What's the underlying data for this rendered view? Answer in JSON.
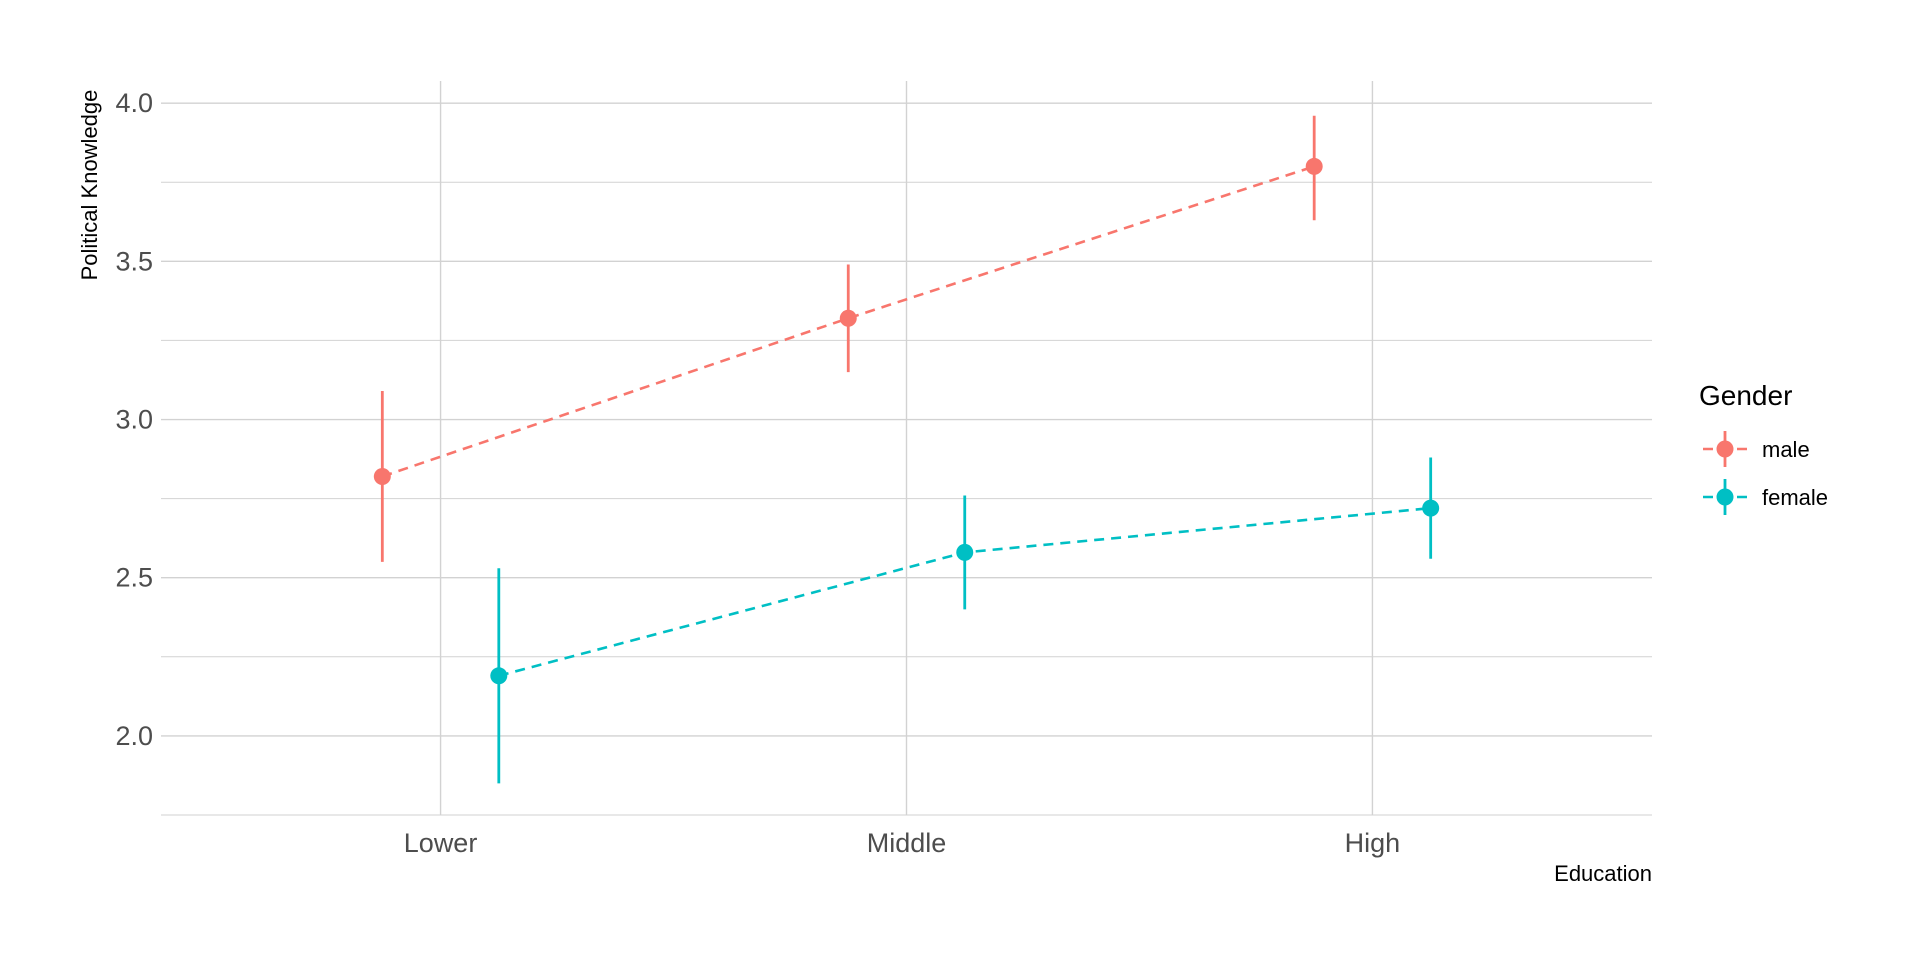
{
  "chart_data": {
    "type": "line",
    "title": "",
    "xlabel": "Education",
    "ylabel": "Political Knowledge",
    "categories": [
      "Lower",
      "Middle",
      "High"
    ],
    "ylim": [
      1.75,
      4.07
    ],
    "yticks": [
      2.0,
      2.5,
      3.0,
      3.5,
      4.0
    ],
    "ytick_labels": [
      "2.0",
      "2.5",
      "3.0",
      "3.5",
      "4.0"
    ],
    "grid": true,
    "line_style": "dashed",
    "points_with_error_bars": true,
    "legend": {
      "title": "Gender",
      "position": "right"
    },
    "series": [
      {
        "name": "male",
        "color": "#F8766D",
        "dodge": "left",
        "values": [
          2.82,
          3.32,
          3.8
        ],
        "lower": [
          2.55,
          3.15,
          3.63
        ],
        "upper": [
          3.09,
          3.49,
          3.96
        ]
      },
      {
        "name": "female",
        "color": "#00BFC4",
        "dodge": "right",
        "values": [
          2.19,
          2.58,
          2.72
        ],
        "lower": [
          1.85,
          2.4,
          2.56
        ],
        "upper": [
          2.53,
          2.76,
          2.88
        ]
      }
    ]
  }
}
